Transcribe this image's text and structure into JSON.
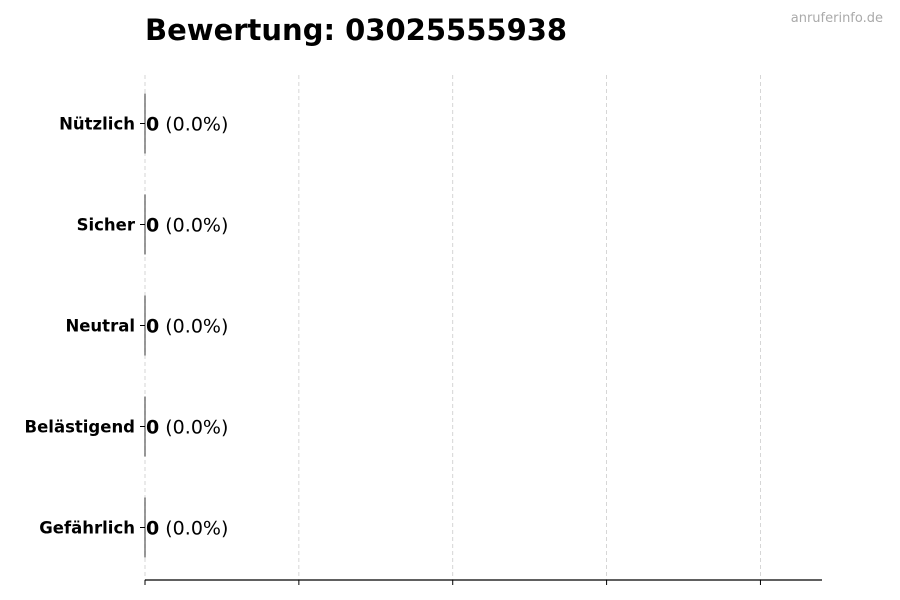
{
  "chart_data": {
    "type": "bar",
    "orientation": "horizontal",
    "title": "Bewertung: 03025555938",
    "watermark": "anruferinfo.de",
    "categories": [
      "Nützlich",
      "Sicher",
      "Neutral",
      "Belästigend",
      "Gefährlich"
    ],
    "values": [
      0,
      0,
      0,
      0,
      0
    ],
    "value_labels": [
      "0",
      "0",
      "0",
      "0",
      "0"
    ],
    "percent_labels": [
      "(0.0%)",
      "(0.0%)",
      "(0.0%)",
      "(0.0%)",
      "(0.0%)"
    ],
    "xlabel": "",
    "ylabel": "",
    "xlim": [
      0,
      4.4
    ],
    "xticks": [
      0,
      1,
      2,
      3,
      4
    ],
    "xtick_labels_visible": false,
    "grid": "x-dashed",
    "colors": {
      "bar_edge": "#000000",
      "grid": "#cccccc",
      "watermark": "#aaaaaa",
      "text": "#000000"
    }
  }
}
